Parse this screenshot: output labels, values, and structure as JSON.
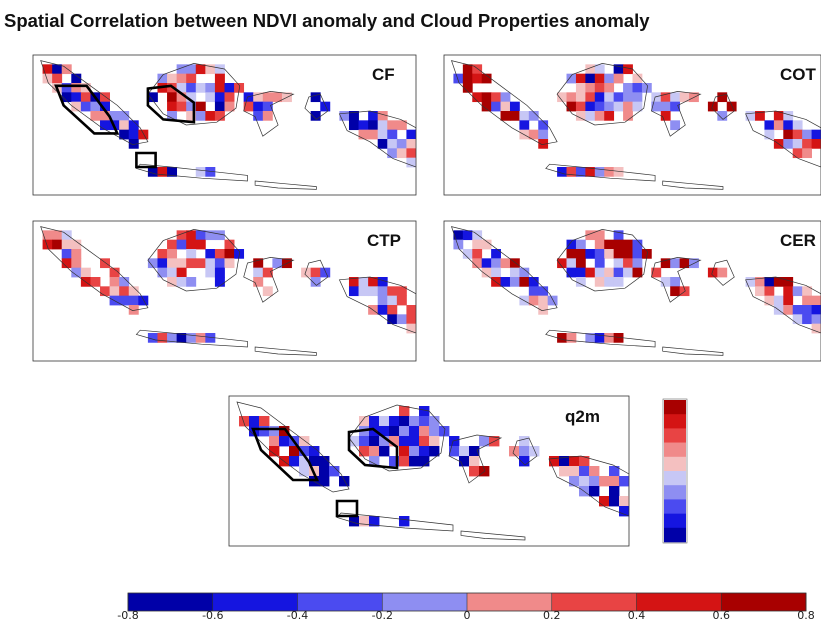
{
  "title": "Spatial Correlation between NDVI anomaly and Cloud Properties anomaly",
  "panels": [
    {
      "id": "cf",
      "label": "CF",
      "seed": 11,
      "bias": -0.15,
      "boxes": true
    },
    {
      "id": "cot",
      "label": "COT",
      "seed": 23,
      "bias": 0.2,
      "boxes": false
    },
    {
      "id": "ctp",
      "label": "CTP",
      "seed": 37,
      "bias": 0.0,
      "boxes": false
    },
    {
      "id": "cer",
      "label": "CER",
      "seed": 53,
      "bias": 0.25,
      "boxes": false
    },
    {
      "id": "q2m",
      "label": "q2m",
      "seed": 71,
      "bias": -0.2,
      "boxes": true
    }
  ],
  "colorbar": {
    "ticks": [
      "-0.8",
      "-0.6",
      "-0.4",
      "-0.2",
      "0",
      "0.2",
      "0.4",
      "0.6",
      "0.8"
    ],
    "colors": [
      "#0000a8",
      "#1515e0",
      "#4b4bf0",
      "#8e8ef2",
      "#c7c7f5",
      "#f4c0c0",
      "#f08a8a",
      "#e84444",
      "#d41414",
      "#a80000"
    ]
  }
}
